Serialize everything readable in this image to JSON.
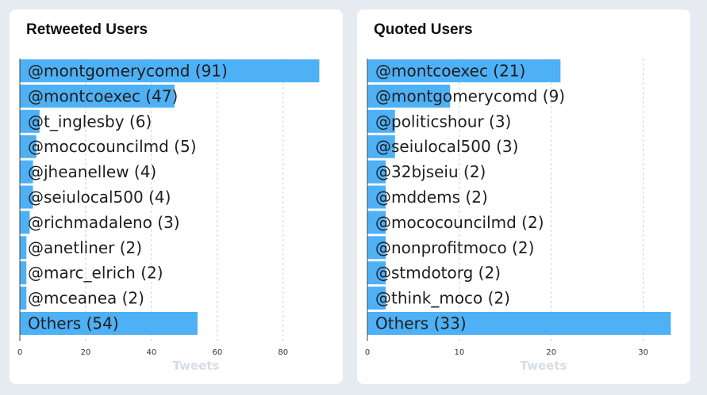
{
  "panels": [
    {
      "title": "Retweeted Users",
      "chart_data": {
        "type": "bar",
        "orientation": "horizontal",
        "title": "Retweeted Users",
        "xlabel": "Tweets",
        "categories": [
          "@montgomerycomd (91)",
          "@montcoexec (47)",
          "@t_inglesby (6)",
          "@mococouncilmd (5)",
          "@jheanellew (4)",
          "@seiulocal500 (4)",
          "@richmadaleno (3)",
          "@anetliner (2)",
          "@marc_elrich (2)",
          "@mceanea (2)",
          "Others (54)"
        ],
        "values": [
          91,
          47,
          6,
          5,
          4,
          4,
          3,
          2,
          2,
          2,
          54
        ],
        "xlim": [
          0,
          95
        ],
        "xticks": [
          0,
          20,
          40,
          60,
          80
        ],
        "grid": true,
        "bar_color": "#4eb0f5"
      }
    },
    {
      "title": "Quoted Users",
      "chart_data": {
        "type": "bar",
        "orientation": "horizontal",
        "title": "Quoted Users",
        "xlabel": "Tweets",
        "categories": [
          "@montcoexec (21)",
          "@montgomerycomd (9)",
          "@politicshour (3)",
          "@seiulocal500 (3)",
          "@32bjseiu (2)",
          "@mddems (2)",
          "@mococouncilmd (2)",
          "@nonprofitmoco (2)",
          "@stmdotorg (2)",
          "@think_moco (2)",
          "Others (33)"
        ],
        "values": [
          21,
          9,
          3,
          3,
          2,
          2,
          2,
          2,
          2,
          2,
          33
        ],
        "xlim": [
          0,
          34
        ],
        "xticks": [
          0,
          10,
          20,
          30
        ],
        "grid": true,
        "bar_color": "#4eb0f5"
      }
    }
  ]
}
